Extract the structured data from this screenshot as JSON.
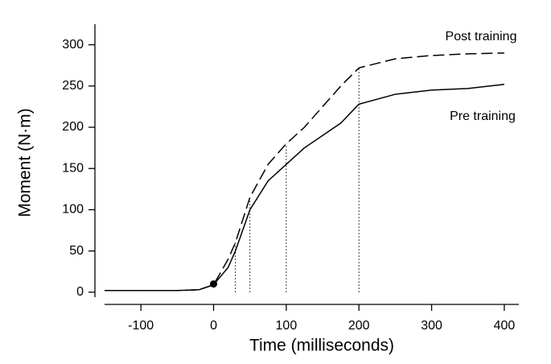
{
  "chart_data": {
    "type": "line",
    "xlabel": "Time (milliseconds)",
    "ylabel": "Moment (N·m)",
    "x": [
      -150,
      -100,
      -50,
      -20,
      0,
      20,
      30,
      50,
      75,
      100,
      125,
      150,
      175,
      200,
      250,
      300,
      350,
      400
    ],
    "series": [
      {
        "name": "Post training",
        "color": "#000000",
        "dash": true,
        "values": [
          2,
          2,
          2,
          3,
          9,
          40,
          60,
          115,
          155,
          180,
          200,
          225,
          250,
          272,
          283,
          287,
          289,
          290
        ]
      },
      {
        "name": "Pre training",
        "color": "#000000",
        "dash": false,
        "values": [
          2,
          2,
          2,
          3,
          9,
          30,
          50,
          100,
          135,
          155,
          175,
          190,
          205,
          228,
          240,
          245,
          247,
          252
        ]
      }
    ],
    "reference_x": [
      30,
      50,
      100,
      200
    ],
    "onset": {
      "x": 0,
      "y": 10
    },
    "xlim": [
      -150,
      420
    ],
    "ylim": [
      -6,
      325
    ],
    "xticks": [
      -100,
      0,
      100,
      200,
      300,
      400
    ],
    "yticks": [
      0,
      50,
      100,
      150,
      200,
      250,
      300
    ]
  }
}
